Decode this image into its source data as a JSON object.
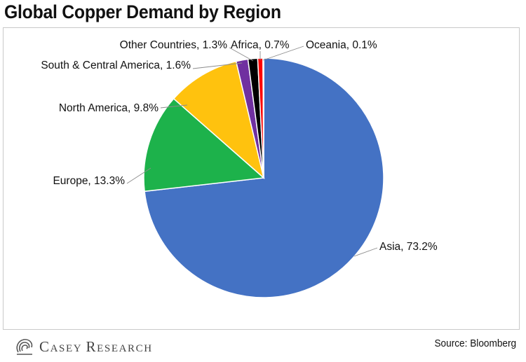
{
  "chart_data": {
    "type": "pie",
    "title": "Global Copper Demand by Region",
    "start_angle_deg": 0,
    "direction": "clockwise",
    "slices": [
      {
        "label": "Asia, 73.2%",
        "region": "Asia",
        "value": 73.2,
        "color": "#4472C4"
      },
      {
        "label": "Europe, 13.3%",
        "region": "Europe",
        "value": 13.3,
        "color": "#1DB24B"
      },
      {
        "label": "North America, 9.8%",
        "region": "North America",
        "value": 9.8,
        "color": "#FFC20E"
      },
      {
        "label": "South & Central America, 1.6%",
        "region": "South & Central America",
        "value": 1.6,
        "color": "#7030A0"
      },
      {
        "label": "Other Countries, 1.3%",
        "region": "Other Countries",
        "value": 1.3,
        "color": "#000000"
      },
      {
        "label": "Africa, 0.7%",
        "region": "Africa",
        "value": 0.7,
        "color": "#FF0000"
      },
      {
        "label": "Oceania, 0.1%",
        "region": "Oceania",
        "value": 0.1,
        "color": "#FFFFFF"
      }
    ]
  },
  "footer": {
    "logo": {
      "first_cap": "C",
      "first_rest": "ASEY",
      "second_cap": "R",
      "second_rest": "ESEARCH"
    },
    "source": "Source: Bloomberg"
  },
  "icons": {
    "logo": "spiral-logo-icon"
  }
}
